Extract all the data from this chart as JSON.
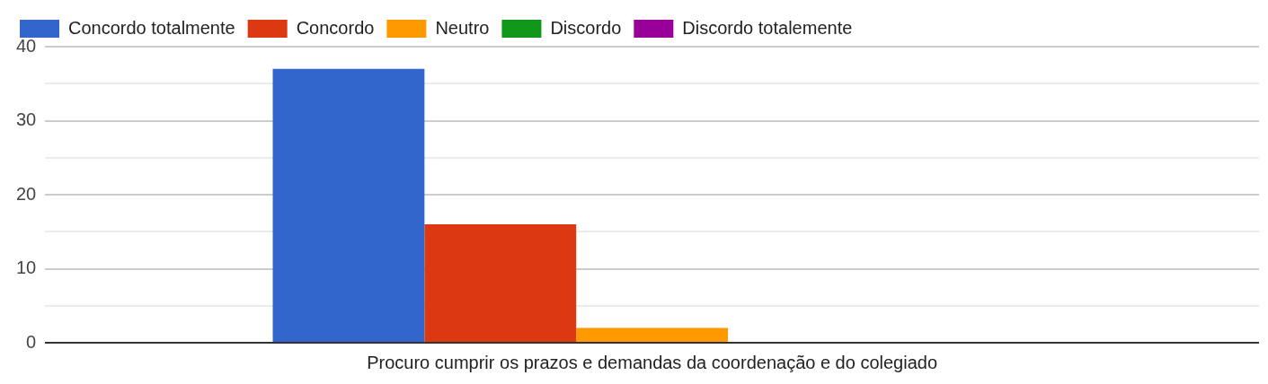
{
  "chart_data": {
    "type": "bar",
    "categories": [
      "Procuro cumprir os prazos e demandas da coordenação e do colegiado"
    ],
    "series": [
      {
        "name": "Concordo totalmente",
        "color": "#3366cc",
        "values": [
          37
        ]
      },
      {
        "name": "Concordo",
        "color": "#dc3912",
        "values": [
          16
        ]
      },
      {
        "name": "Neutro",
        "color": "#ff9900",
        "values": [
          2
        ]
      },
      {
        "name": "Discordo",
        "color": "#109618",
        "values": [
          0
        ]
      },
      {
        "name": "Discordo totalemente",
        "color": "#990099",
        "values": [
          0
        ]
      }
    ],
    "ylim": [
      0,
      40
    ],
    "yticks": [
      0,
      {
        "value": 5,
        "label": null
      },
      10,
      {
        "value": 15,
        "label": null
      },
      20,
      {
        "value": 25,
        "label": null
      },
      30,
      {
        "value": 35,
        "label": null
      },
      40
    ],
    "grid": true,
    "legend": "top"
  }
}
